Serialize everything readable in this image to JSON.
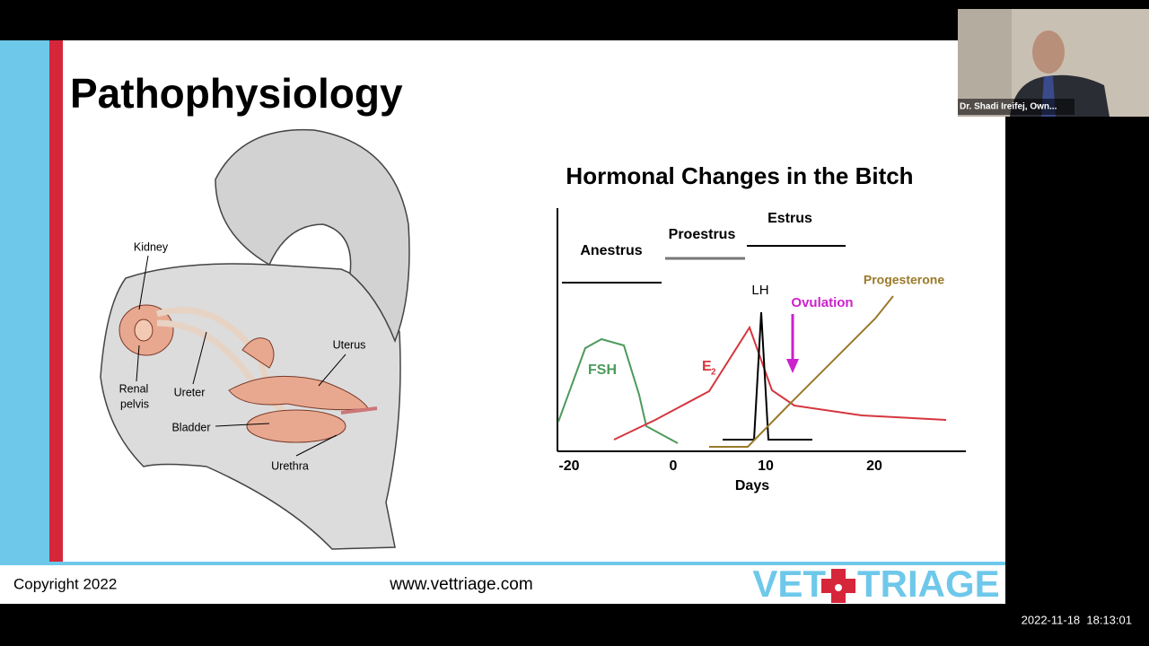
{
  "slide": {
    "title": "Pathophysiology",
    "anatomy_labels": [
      "Kidney",
      "Renal",
      "pelvis",
      "Ureter",
      "Bladder",
      "Uterus",
      "Urethra"
    ],
    "chart": {
      "title": "Hormonal Changes in the Bitch",
      "phases": [
        "Anestrus",
        "Proestrus",
        "Estrus"
      ],
      "curve_labels": [
        "FSH",
        "E",
        "2",
        "LH",
        "Ovulation",
        "Progesterone"
      ],
      "axis_labels": [
        "-20",
        "0",
        "10",
        "20"
      ],
      "x_label": "Days"
    },
    "footer": {
      "copyright": "Copyright 2022",
      "website": "www.vettriage.com",
      "logo_left": "VET",
      "logo_right": "TRIAGE"
    }
  },
  "video_tile": {
    "name": "Dr. Shadi Ireifej, Own..."
  },
  "timestamp": "2022-11-18  18:13:01"
}
